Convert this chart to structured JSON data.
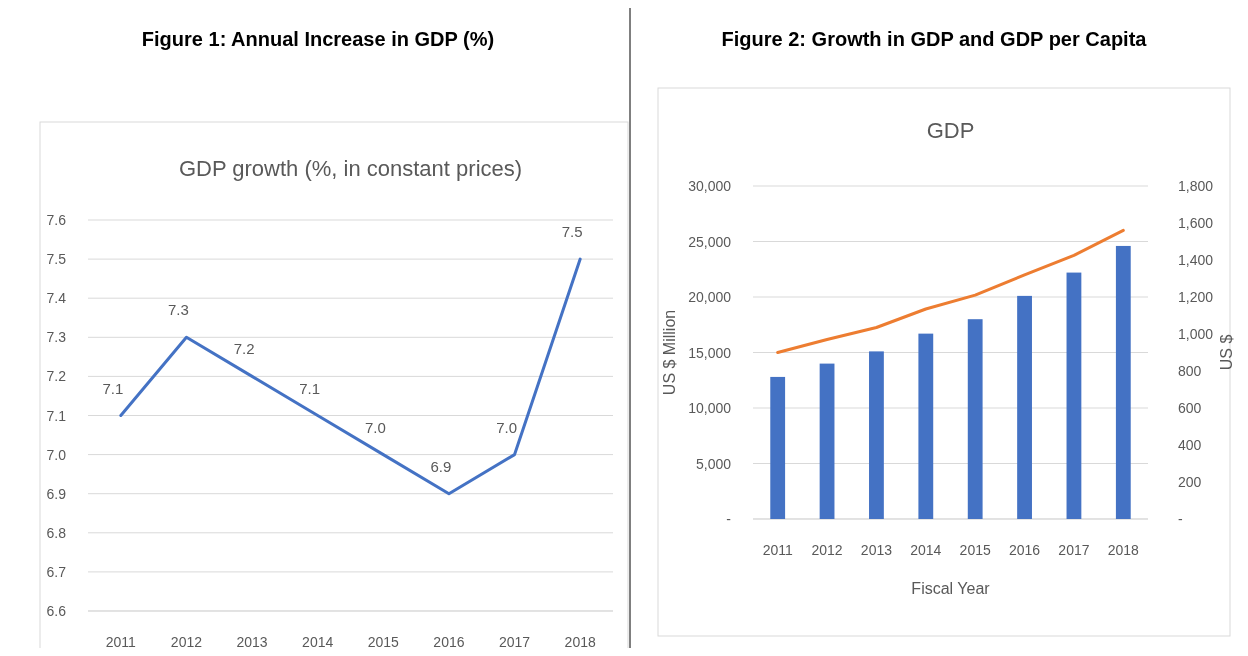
{
  "chart_data": [
    {
      "type": "line",
      "title": "Figure 1: Annual Increase in GDP (%)",
      "subtitle": "GDP growth (%, in constant prices)",
      "categories": [
        "2011",
        "2012",
        "2013",
        "2014",
        "2015",
        "2016",
        "2017",
        "2018"
      ],
      "values": [
        7.1,
        7.3,
        7.2,
        7.1,
        7.0,
        6.9,
        7.0,
        7.5
      ],
      "value_labels": [
        "7.1",
        "7.3",
        "7.2",
        "7.1",
        "7.0",
        "6.9",
        "7.0",
        "7.5"
      ],
      "color": "#4472c4",
      "ylim": [
        6.6,
        7.6
      ],
      "yticks": [
        6.6,
        6.7,
        6.8,
        6.9,
        {
          "value": 7,
          "label": "7.0"
        },
        7.1,
        7.2,
        7.3,
        7.4,
        7.5,
        7.6
      ],
      "grid": "y"
    },
    {
      "type": "bar",
      "title": "Figure 2: Growth in GDP and GDP per Capita",
      "subtitle": "GDP",
      "categories": [
        "2011",
        "2012",
        "2013",
        "2014",
        "2015",
        "2016",
        "2017",
        "2018"
      ],
      "xlabel": "Fiscal Year",
      "ylabel": "US $ Million",
      "y2label": "US $",
      "series": [
        {
          "type": "bar",
          "color": "#4472c4",
          "values": [
            12800,
            14000,
            15100,
            16700,
            18000,
            20100,
            22200,
            24600
          ]
        },
        {
          "type": "line",
          "axis": "y2",
          "color": "#ed7d31",
          "values": [
            900,
            970,
            1035,
            1135,
            1210,
            1320,
            1425,
            1560
          ]
        }
      ],
      "ylim": [
        0,
        30000
      ],
      "yticks": [
        {
          "value": 0,
          "label": "-"
        },
        {
          "value": 5000,
          "label": "5,000"
        },
        {
          "value": 10000,
          "label": "10,000"
        },
        {
          "value": 15000,
          "label": "15,000"
        },
        {
          "value": 20000,
          "label": "20,000"
        },
        {
          "value": 25000,
          "label": "25,000"
        },
        {
          "value": 30000,
          "label": "30,000"
        }
      ],
      "y2lim": [
        0,
        1800
      ],
      "y2ticks": [
        {
          "value": 0,
          "label": "-"
        },
        200,
        400,
        600,
        800,
        {
          "value": 1000,
          "label": "1,000"
        },
        {
          "value": 1200,
          "label": "1,200"
        },
        {
          "value": 1400,
          "label": "1,400"
        },
        {
          "value": 1600,
          "label": "1,600"
        },
        {
          "value": 1800,
          "label": "1,800"
        }
      ],
      "grid": "y"
    }
  ]
}
